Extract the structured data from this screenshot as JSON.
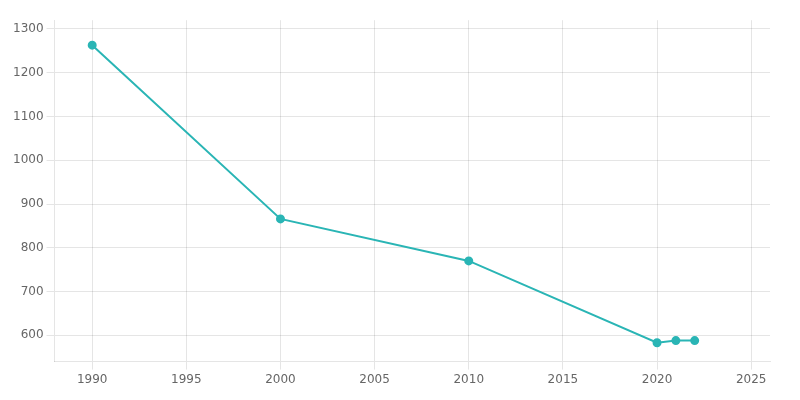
{
  "chart_data": {
    "type": "line",
    "x": [
      1990,
      2000,
      2010,
      2020,
      2021,
      2022
    ],
    "values": [
      1263,
      866,
      770,
      583,
      588,
      588
    ],
    "color": "#2ab5b5",
    "marker": "circle",
    "line_style": "solid",
    "xlim": [
      1988,
      2026
    ],
    "xticks": [
      1990,
      1995,
      2000,
      2005,
      2010,
      2015,
      2020,
      2025
    ],
    "ylim": [
      540,
      1320
    ],
    "yticks": [
      600,
      700,
      800,
      900,
      1000,
      1100,
      1200,
      1300
    ],
    "grid": true
  }
}
